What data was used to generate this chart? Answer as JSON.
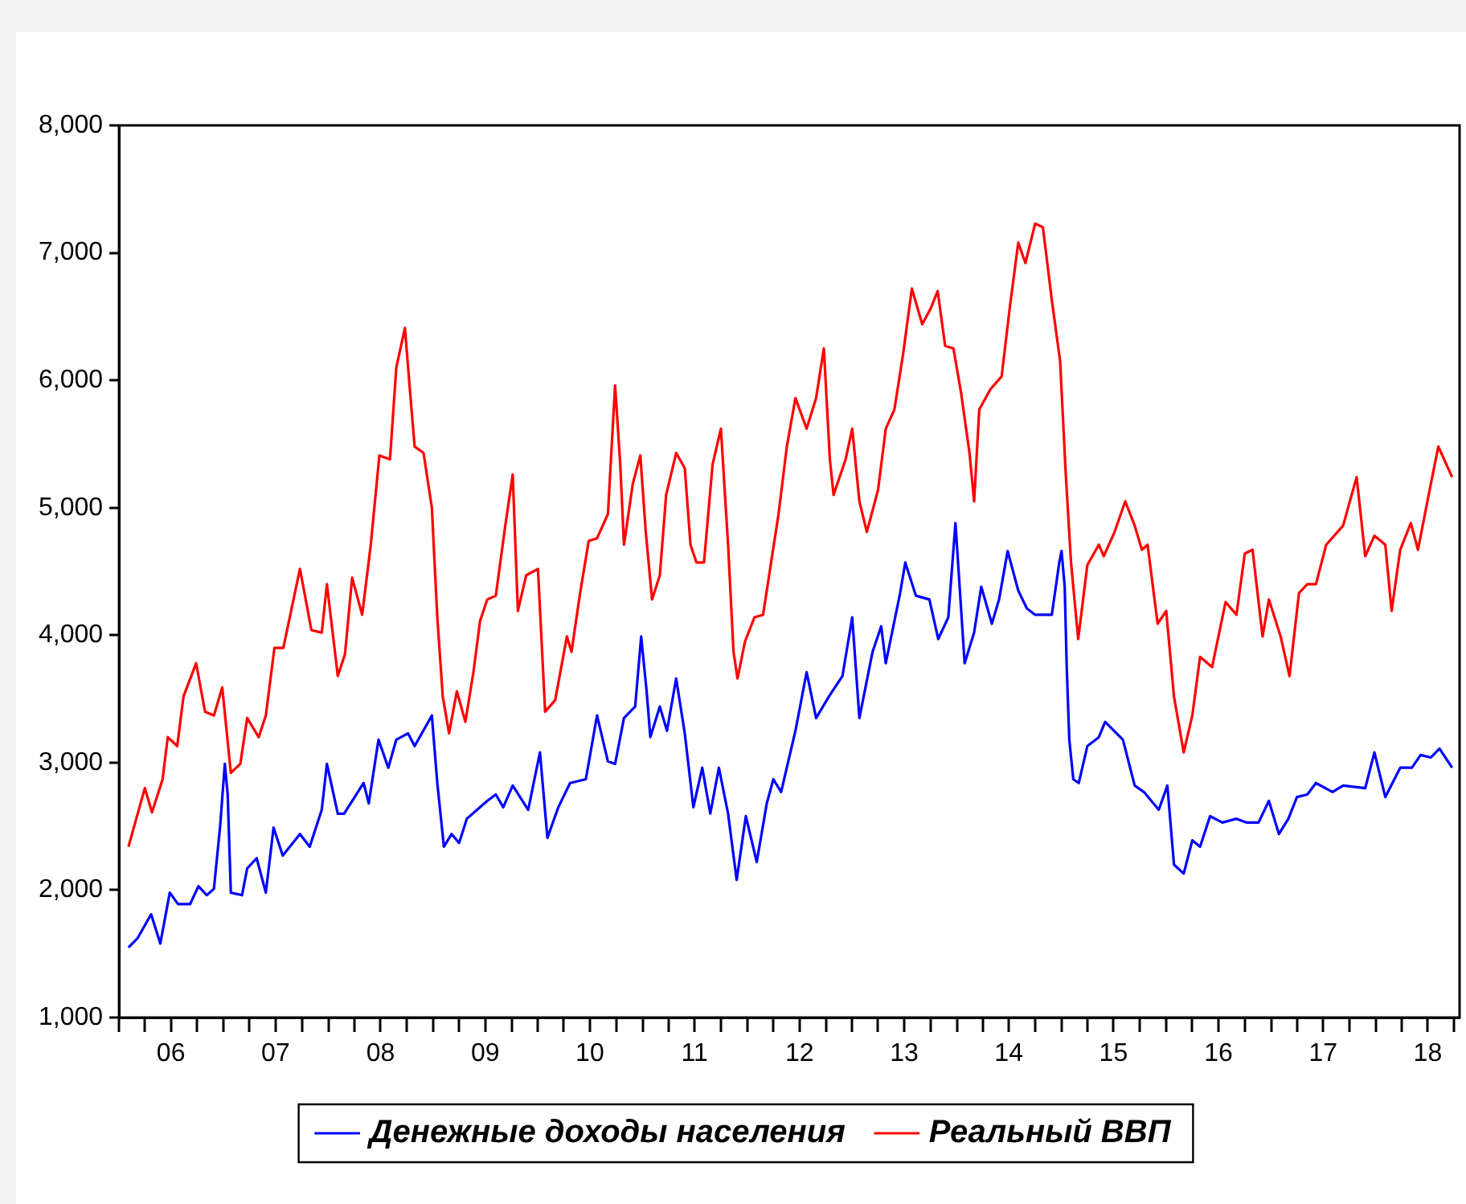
{
  "chart_data": {
    "type": "line",
    "marker": "none",
    "legend": "bottom",
    "xlim": [
      "2006-01-01",
      "2018-10-20"
    ],
    "xticks": [
      {
        "value": "2006-01",
        "label": null
      },
      {
        "value": "2006-04",
        "label": null
      },
      {
        "value": "2006-07",
        "label": "06"
      },
      {
        "value": "2006-10",
        "label": null
      },
      {
        "value": "2007-01",
        "label": null
      },
      {
        "value": "2007-04",
        "label": null
      },
      {
        "value": "2007-07",
        "label": "07"
      },
      {
        "value": "2007-10",
        "label": null
      },
      {
        "value": "2008-01",
        "label": null
      },
      {
        "value": "2008-04",
        "label": null
      },
      {
        "value": "2008-07",
        "label": "08"
      },
      {
        "value": "2008-10",
        "label": null
      },
      {
        "value": "2009-01",
        "label": null
      },
      {
        "value": "2009-04",
        "label": null
      },
      {
        "value": "2009-07",
        "label": "09"
      },
      {
        "value": "2009-10",
        "label": null
      },
      {
        "value": "2010-01",
        "label": null
      },
      {
        "value": "2010-04",
        "label": null
      },
      {
        "value": "2010-07",
        "label": "10"
      },
      {
        "value": "2010-10",
        "label": null
      },
      {
        "value": "2011-01",
        "label": null
      },
      {
        "value": "2011-04",
        "label": null
      },
      {
        "value": "2011-07",
        "label": "11"
      },
      {
        "value": "2011-10",
        "label": null
      },
      {
        "value": "2012-01",
        "label": null
      },
      {
        "value": "2012-04",
        "label": null
      },
      {
        "value": "2012-07",
        "label": "12"
      },
      {
        "value": "2012-10",
        "label": null
      },
      {
        "value": "2013-01",
        "label": null
      },
      {
        "value": "2013-04",
        "label": null
      },
      {
        "value": "2013-07",
        "label": "13"
      },
      {
        "value": "2013-10",
        "label": null
      },
      {
        "value": "2014-01",
        "label": null
      },
      {
        "value": "2014-04",
        "label": null
      },
      {
        "value": "2014-07",
        "label": "14"
      },
      {
        "value": "2014-10",
        "label": null
      },
      {
        "value": "2015-01",
        "label": null
      },
      {
        "value": "2015-04",
        "label": null
      },
      {
        "value": "2015-07",
        "label": "15"
      },
      {
        "value": "2015-10",
        "label": null
      },
      {
        "value": "2016-01",
        "label": null
      },
      {
        "value": "2016-04",
        "label": null
      },
      {
        "value": "2016-07",
        "label": "16"
      },
      {
        "value": "2016-10",
        "label": null
      },
      {
        "value": "2017-01",
        "label": null
      },
      {
        "value": "2017-04",
        "label": null
      },
      {
        "value": "2017-07",
        "label": "17"
      },
      {
        "value": "2017-10",
        "label": null
      },
      {
        "value": "2018-01",
        "label": null
      },
      {
        "value": "2018-04",
        "label": null
      },
      {
        "value": "2018-07",
        "label": "18"
      },
      {
        "value": "2018-10",
        "label": null
      }
    ],
    "ylim": [
      1000,
      8000
    ],
    "yticks": [
      {
        "value": 1000,
        "label": "1,000"
      },
      {
        "value": 2000,
        "label": "2,000"
      },
      {
        "value": 3000,
        "label": "3,000"
      },
      {
        "value": 4000,
        "label": "4,000"
      },
      {
        "value": 5000,
        "label": "5,000"
      },
      {
        "value": 6000,
        "label": "6,000"
      },
      {
        "value": 7000,
        "label": "7,000"
      },
      {
        "value": 8000,
        "label": "8,000"
      }
    ],
    "series": [
      {
        "name": "Денежные доходы населения",
        "color": "#0000ff",
        "x": [
          "2006-02-03",
          "2006-03-06",
          "2006-04-23",
          "2006-05-25",
          "2006-06-27",
          "2006-07-26",
          "2006-09-06",
          "2006-10-05",
          "2006-11-03",
          "2006-11-28",
          "2006-12-20",
          "2007-01-05",
          "2007-01-15",
          "2007-01-26",
          "2007-03-06",
          "2007-03-24",
          "2007-04-26",
          "2007-05-28",
          "2007-06-24",
          "2007-07-26",
          "2007-09-24",
          "2007-10-28",
          "2007-12-09",
          "2007-12-27",
          "2008-02-03",
          "2008-02-25",
          "2008-05-03",
          "2008-05-21",
          "2008-06-24",
          "2008-07-28",
          "2008-08-25",
          "2008-10-05",
          "2008-10-28",
          "2008-12-27",
          "2009-01-15",
          "2009-02-07",
          "2009-03-06",
          "2009-04-01",
          "2009-04-28",
          "2009-07-08",
          "2009-08-07",
          "2009-09-02",
          "2009-10-05",
          "2009-11-28",
          "2009-12-17",
          "2010-01-08",
          "2010-02-03",
          "2010-03-13",
          "2010-04-23",
          "2010-06-17",
          "2010-07-26",
          "2010-09-02",
          "2010-09-27",
          "2010-10-28",
          "2010-12-06",
          "2010-12-27",
          "2011-01-15",
          "2011-01-28",
          "2011-03-02",
          "2011-03-27",
          "2011-04-28",
          "2011-05-28",
          "2011-06-27",
          "2011-07-28",
          "2011-08-25",
          "2011-09-24",
          "2011-10-26",
          "2011-11-25",
          "2011-12-27",
          "2012-02-03",
          "2012-03-09",
          "2012-04-01",
          "2012-04-28",
          "2012-06-17",
          "2012-07-26",
          "2012-08-28",
          "2012-10-12",
          "2012-11-28",
          "2013-01-01",
          "2013-01-26",
          "2013-03-13",
          "2013-04-12",
          "2013-04-28",
          "2013-06-17",
          "2013-07-05",
          "2013-08-11",
          "2013-09-27",
          "2013-10-28",
          "2013-12-02",
          "2013-12-27",
          "2014-01-28",
          "2014-03-02",
          "2014-03-27",
          "2014-05-03",
          "2014-05-28",
          "2014-06-27",
          "2014-08-03",
          "2014-09-02",
          "2014-10-01",
          "2014-11-28",
          "2014-12-24",
          "2015-01-01",
          "2015-01-12",
          "2015-01-19",
          "2015-01-28",
          "2015-02-11",
          "2015-03-02",
          "2015-04-01",
          "2015-05-11",
          "2015-06-02",
          "2015-08-03",
          "2015-09-13",
          "2015-10-15",
          "2015-12-06",
          "2016-01-05",
          "2016-01-28",
          "2016-03-02",
          "2016-04-01",
          "2016-04-28",
          "2016-06-02",
          "2016-07-15",
          "2016-09-02",
          "2016-10-08",
          "2016-11-18",
          "2016-12-24",
          "2017-01-28",
          "2017-03-02",
          "2017-04-01",
          "2017-05-07",
          "2017-06-06",
          "2017-08-03",
          "2017-09-09",
          "2017-11-25",
          "2017-12-27",
          "2018-02-03",
          "2018-03-27",
          "2018-05-07",
          "2018-06-06",
          "2018-07-12",
          "2018-08-11",
          "2018-09-24"
        ],
        "values": [
          1550,
          1620,
          1810,
          1580,
          1980,
          1890,
          1890,
          2030,
          1960,
          2010,
          2510,
          2990,
          2750,
          1980,
          1960,
          2170,
          2250,
          1980,
          2490,
          2270,
          2440,
          2340,
          2630,
          2990,
          2600,
          2600,
          2840,
          2680,
          3180,
          2960,
          3180,
          3230,
          3130,
          3370,
          2840,
          2340,
          2440,
          2370,
          2560,
          2700,
          2750,
          2650,
          2820,
          2630,
          2840,
          3080,
          2410,
          2650,
          2840,
          2870,
          3370,
          3010,
          2990,
          3350,
          3440,
          3990,
          3560,
          3200,
          3440,
          3250,
          3660,
          3230,
          2650,
          2960,
          2600,
          2960,
          2600,
          2080,
          2580,
          2220,
          2680,
          2870,
          2770,
          3250,
          3710,
          3350,
          3520,
          3680,
          4140,
          3350,
          3870,
          4070,
          3780,
          4330,
          4570,
          4310,
          4280,
          3970,
          4140,
          4880,
          3780,
          4020,
          4380,
          4090,
          4280,
          4660,
          4350,
          4210,
          4160,
          4160,
          4570,
          4660,
          4380,
          3750,
          3180,
          2870,
          2840,
          3130,
          3200,
          3320,
          3180,
          2820,
          2770,
          2630,
          2820,
          2200,
          2130,
          2390,
          2340,
          2580,
          2530,
          2560,
          2530,
          2530,
          2700,
          2440,
          2560,
          2730,
          2750,
          2840,
          2770,
          2820,
          2800,
          3080,
          2730,
          2960,
          2960,
          3060,
          3040,
          3110,
          2960
        ]
      },
      {
        "name": "Реальный ВВП",
        "color": "#ff0000",
        "x": [
          "2006-02-03",
          "2006-04-01",
          "2006-04-26",
          "2006-06-02",
          "2006-06-20",
          "2006-07-23",
          "2006-08-14",
          "2006-09-27",
          "2006-10-28",
          "2006-11-28",
          "2006-12-27",
          "2007-01-26",
          "2007-02-28",
          "2007-03-24",
          "2007-05-03",
          "2007-05-28",
          "2007-06-27",
          "2007-07-28",
          "2007-09-24",
          "2007-11-03",
          "2007-12-09",
          "2007-12-27",
          "2008-02-03",
          "2008-02-28",
          "2008-03-24",
          "2008-04-28",
          "2008-05-28",
          "2008-06-27",
          "2008-08-03",
          "2008-08-25",
          "2008-09-24",
          "2008-10-12",
          "2008-10-28",
          "2008-11-28",
          "2008-12-27",
          "2009-01-15",
          "2009-02-03",
          "2009-02-25",
          "2009-03-24",
          "2009-04-23",
          "2009-05-21",
          "2009-06-13",
          "2009-07-08",
          "2009-08-07",
          "2009-09-09",
          "2009-10-05",
          "2009-10-23",
          "2009-11-21",
          "2010-01-01",
          "2010-01-26",
          "2010-03-02",
          "2010-04-12",
          "2010-04-28",
          "2010-05-28",
          "2010-06-27",
          "2010-07-26",
          "2010-09-02",
          "2010-09-27",
          "2010-10-15",
          "2010-10-28",
          "2010-11-28",
          "2010-12-24",
          "2011-01-12",
          "2011-02-03",
          "2011-03-02",
          "2011-03-24",
          "2011-04-28",
          "2011-05-28",
          "2011-06-17",
          "2011-07-08",
          "2011-08-03",
          "2011-09-02",
          "2011-10-01",
          "2011-10-26",
          "2011-11-14",
          "2011-11-28",
          "2011-12-24",
          "2012-01-26",
          "2012-02-25",
          "2012-03-24",
          "2012-04-19",
          "2012-05-18",
          "2012-06-17",
          "2012-07-26",
          "2012-08-28",
          "2012-09-24",
          "2012-10-15",
          "2012-10-28",
          "2012-12-09",
          "2013-01-01",
          "2013-01-26",
          "2013-02-21",
          "2013-04-01",
          "2013-04-28",
          "2013-05-28",
          "2013-06-27",
          "2013-07-28",
          "2013-09-02",
          "2013-10-01",
          "2013-10-26",
          "2013-11-21",
          "2013-12-20",
          "2014-01-15",
          "2014-02-14",
          "2014-03-02",
          "2014-03-20",
          "2014-04-28",
          "2014-06-06",
          "2014-07-05",
          "2014-08-03",
          "2014-08-28",
          "2014-10-01",
          "2014-10-28",
          "2014-11-28",
          "2014-12-27",
          "2015-01-15",
          "2015-02-03",
          "2015-02-28",
          "2015-04-01",
          "2015-05-11",
          "2015-05-28",
          "2015-07-05",
          "2015-08-11",
          "2015-09-13",
          "2015-10-08",
          "2015-10-28",
          "2015-12-02",
          "2016-01-01",
          "2016-01-28",
          "2016-03-02",
          "2016-04-01",
          "2016-04-28",
          "2016-06-09",
          "2016-07-26",
          "2016-09-02",
          "2016-10-01",
          "2016-10-28",
          "2016-12-02",
          "2016-12-24",
          "2017-02-03",
          "2017-03-06",
          "2017-04-08",
          "2017-05-07",
          "2017-06-06",
          "2017-07-12",
          "2017-09-09",
          "2017-10-26",
          "2017-11-25",
          "2017-12-27",
          "2018-02-03",
          "2018-02-25",
          "2018-03-27",
          "2018-05-03",
          "2018-05-28",
          "2018-07-12",
          "2018-08-07",
          "2018-09-24"
        ],
        "values": [
          2340,
          2800,
          2610,
          2870,
          3200,
          3130,
          3520,
          3780,
          3400,
          3370,
          3590,
          2920,
          2990,
          3350,
          3200,
          3370,
          3900,
          3900,
          4520,
          4040,
          4020,
          4400,
          3680,
          3850,
          4450,
          4160,
          4710,
          5410,
          5380,
          6100,
          6410,
          5910,
          5480,
          5430,
          5000,
          4140,
          3520,
          3230,
          3560,
          3320,
          3710,
          4110,
          4280,
          4310,
          4860,
          5260,
          4190,
          4470,
          4520,
          3400,
          3490,
          3990,
          3870,
          4330,
          4740,
          4760,
          4950,
          5960,
          5340,
          4710,
          5190,
          5410,
          4810,
          4280,
          4470,
          5100,
          5430,
          5310,
          4710,
          4570,
          4570,
          5340,
          5620,
          4710,
          3870,
          3660,
          3950,
          4140,
          4160,
          4570,
          4950,
          5480,
          5860,
          5620,
          5860,
          6250,
          5380,
          5100,
          5380,
          5620,
          5050,
          4810,
          5140,
          5620,
          5770,
          6200,
          6720,
          6440,
          6560,
          6700,
          6270,
          6250,
          5910,
          5430,
          5050,
          5770,
          5930,
          6030,
          6580,
          7080,
          6920,
          7230,
          7200,
          6630,
          6150,
          5290,
          4570,
          3970,
          4550,
          4710,
          4620,
          4810,
          5050,
          4860,
          4670,
          4710,
          4090,
          4190,
          3520,
          3080,
          3370,
          3830,
          3750,
          4260,
          4160,
          4640,
          4670,
          3990,
          4280,
          3990,
          3680,
          4330,
          4400,
          4400,
          4710,
          4860,
          5240,
          4620,
          4780,
          4710,
          4190,
          4670,
          4880,
          4670,
          5190,
          5480,
          5240
        ]
      }
    ]
  }
}
